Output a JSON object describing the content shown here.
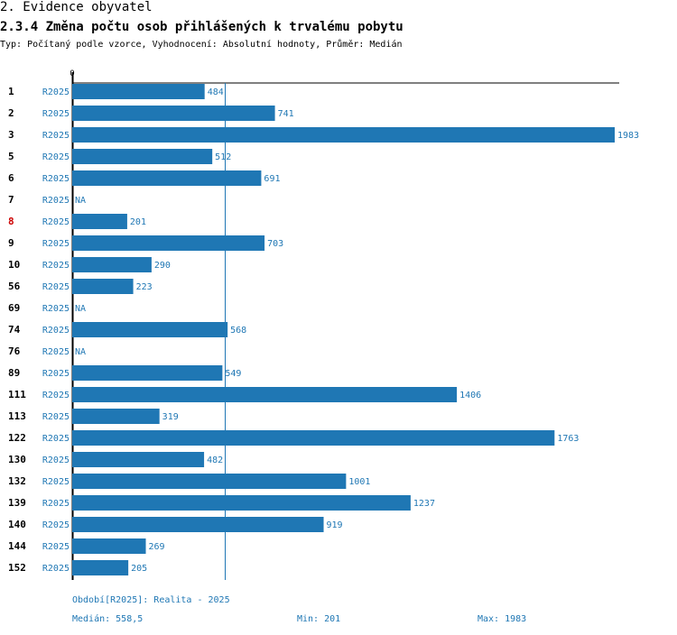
{
  "header": {
    "section": "2. Evidence obyvatel",
    "title": "2.3.4 Změna počtu osob přihlášených k trvalému pobytu",
    "subtitle": "Typ: Počítaný podle vzorce, Vyhodnocení: Absolutní hodnoty, Průměr: Medián"
  },
  "chart_data": {
    "type": "bar",
    "orientation": "horizontal",
    "title": "2.3.4 Změna počtu osob přihlášených k trvalému pobytu",
    "axis_zero_label": "0",
    "xlim": [
      0,
      1983
    ],
    "median": 558.5,
    "series_label": "R2025",
    "highlight_color": "#cc0000",
    "bar_color": "#1f77b4",
    "rows": [
      {
        "id": "1",
        "period": "R2025",
        "value": 484,
        "label": "484",
        "highlight": false
      },
      {
        "id": "2",
        "period": "R2025",
        "value": 741,
        "label": "741",
        "highlight": false
      },
      {
        "id": "3",
        "period": "R2025",
        "value": 1983,
        "label": "1983",
        "highlight": false
      },
      {
        "id": "5",
        "period": "R2025",
        "value": 512,
        "label": "512",
        "highlight": false
      },
      {
        "id": "6",
        "period": "R2025",
        "value": 691,
        "label": "691",
        "highlight": false
      },
      {
        "id": "7",
        "period": "R2025",
        "value": null,
        "label": "NA",
        "highlight": false
      },
      {
        "id": "8",
        "period": "R2025",
        "value": 201,
        "label": "201",
        "highlight": true
      },
      {
        "id": "9",
        "period": "R2025",
        "value": 703,
        "label": "703",
        "highlight": false
      },
      {
        "id": "10",
        "period": "R2025",
        "value": 290,
        "label": "290",
        "highlight": false
      },
      {
        "id": "56",
        "period": "R2025",
        "value": 223,
        "label": "223",
        "highlight": false
      },
      {
        "id": "69",
        "period": "R2025",
        "value": null,
        "label": "NA",
        "highlight": false
      },
      {
        "id": "74",
        "period": "R2025",
        "value": 568,
        "label": "568",
        "highlight": false
      },
      {
        "id": "76",
        "period": "R2025",
        "value": null,
        "label": "NA",
        "highlight": false
      },
      {
        "id": "89",
        "period": "R2025",
        "value": 549,
        "label": "549",
        "highlight": false
      },
      {
        "id": "111",
        "period": "R2025",
        "value": 1406,
        "label": "1406",
        "highlight": false
      },
      {
        "id": "113",
        "period": "R2025",
        "value": 319,
        "label": "319",
        "highlight": false
      },
      {
        "id": "122",
        "period": "R2025",
        "value": 1763,
        "label": "1763",
        "highlight": false
      },
      {
        "id": "130",
        "period": "R2025",
        "value": 482,
        "label": "482",
        "highlight": false
      },
      {
        "id": "132",
        "period": "R2025",
        "value": 1001,
        "label": "1001",
        "highlight": false
      },
      {
        "id": "139",
        "period": "R2025",
        "value": 1237,
        "label": "1237",
        "highlight": false
      },
      {
        "id": "140",
        "period": "R2025",
        "value": 919,
        "label": "919",
        "highlight": false
      },
      {
        "id": "144",
        "period": "R2025",
        "value": 269,
        "label": "269",
        "highlight": false
      },
      {
        "id": "152",
        "period": "R2025",
        "value": 205,
        "label": "205",
        "highlight": false
      }
    ]
  },
  "footer": {
    "period_legend": "Období[R2025]: Realita - 2025",
    "median_text": "Medián: 558,5",
    "min_text": "Min: 201",
    "max_text": "Max: 1983"
  }
}
